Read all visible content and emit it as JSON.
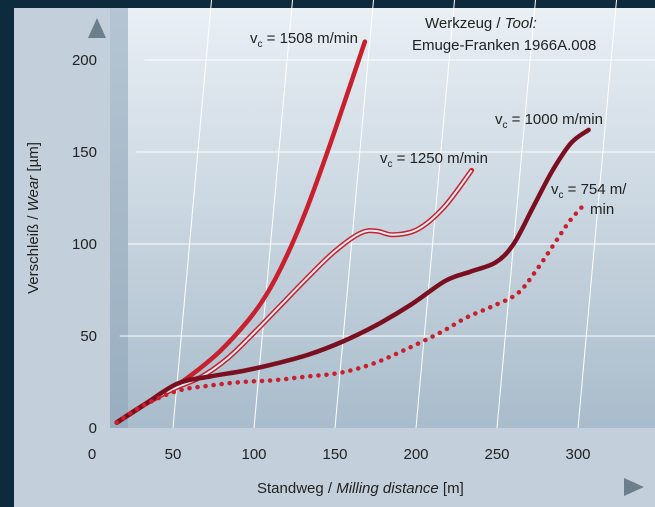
{
  "chart_data": {
    "type": "line",
    "title": "",
    "xlabel": "Standweg / Milling distance [m]",
    "xlabel_parts": {
      "main": "Standweg / ",
      "italic": "Milling distance",
      "unit": " [m]"
    },
    "ylabel": "Verschleiß / Wear [µm]",
    "ylabel_parts": {
      "main": "Verschleiß / ",
      "italic": "Wear",
      "unit": " [µm]"
    },
    "xlim": [
      0,
      350
    ],
    "ylim": [
      0,
      220
    ],
    "x_ticks": [
      0,
      50,
      100,
      150,
      200,
      250,
      300
    ],
    "y_ticks": [
      0,
      50,
      100,
      150,
      200
    ],
    "grid": true,
    "annotation": {
      "line1_main": "Werkzeug / ",
      "line1_italic": "Tool:",
      "line2": "Emuge-Franken 1966A.008"
    },
    "series": [
      {
        "name": "vc = 1508 m/min",
        "label_prefix": "v",
        "label_sub": "c",
        "label_rest": " = 1508 m/min",
        "color": "#c8202c",
        "style": "solid",
        "x": [
          15,
          30,
          45,
          60,
          75,
          90,
          100,
          110,
          120,
          130,
          140,
          147
        ],
        "y": [
          3,
          12,
          20,
          30,
          42,
          58,
          72,
          92,
          118,
          150,
          185,
          210
        ]
      },
      {
        "name": "vc = 1250 m/min",
        "label_prefix": "v",
        "label_sub": "c",
        "label_rest": " = 1250 m/min",
        "color": "#c8202c",
        "style": "double",
        "x": [
          15,
          35,
          50,
          65,
          80,
          95,
          110,
          125,
          140,
          155,
          165,
          175,
          190,
          205,
          220
        ],
        "y": [
          3,
          15,
          22,
          28,
          38,
          52,
          67,
          82,
          96,
          106,
          107,
          105,
          108,
          120,
          140
        ]
      },
      {
        "name": "vc = 1000 m/min",
        "label_prefix": "v",
        "label_sub": "c",
        "label_rest": " = 1000 m/min",
        "color": "#7a0f20",
        "style": "solid",
        "x": [
          15,
          30,
          50,
          70,
          90,
          110,
          130,
          150,
          170,
          190,
          210,
          225,
          240,
          250,
          260,
          270,
          280,
          290
        ],
        "y": [
          3,
          12,
          24,
          28,
          31,
          35,
          40,
          47,
          56,
          67,
          80,
          85,
          90,
          100,
          120,
          140,
          155,
          162
        ]
      },
      {
        "name": "vc = 754 m/min",
        "label_prefix": "v",
        "label_sub": "c",
        "label_rest_line1": " = 754 m/",
        "label_rest_line2": "min",
        "color": "#c8202c",
        "style": "dotted",
        "x": [
          15,
          30,
          50,
          70,
          90,
          110,
          130,
          150,
          170,
          190,
          210,
          225,
          240,
          255,
          265,
          275,
          283,
          290
        ],
        "y": [
          3,
          12,
          20,
          23,
          25,
          26,
          28,
          30,
          35,
          43,
          52,
          60,
          66,
          73,
          85,
          100,
          112,
          120
        ]
      }
    ]
  }
}
